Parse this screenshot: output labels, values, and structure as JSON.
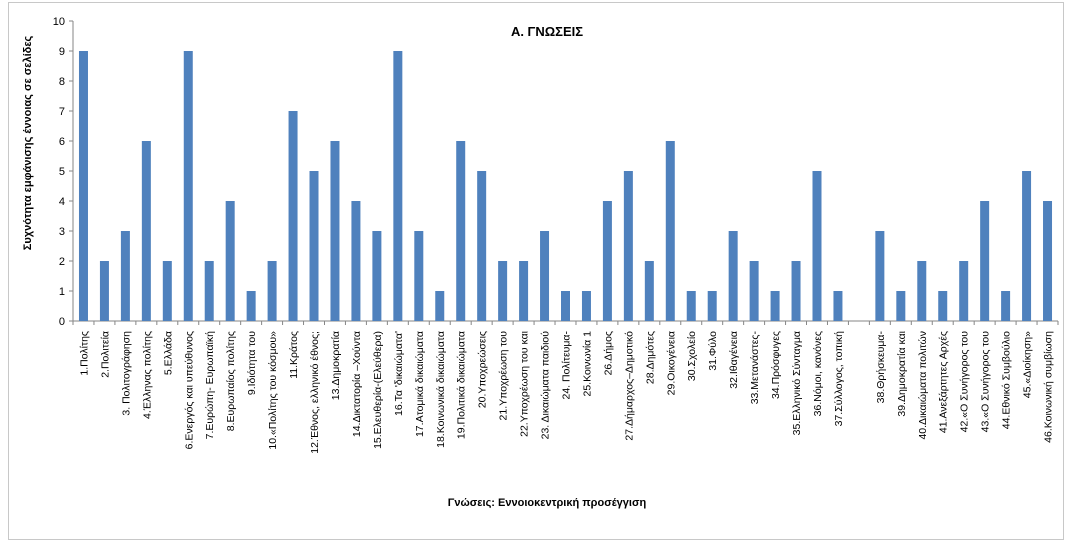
{
  "chart_data": {
    "type": "bar",
    "title": "Α. ΓΝΩΣΕΙΣ",
    "xlabel": "Γνώσεις: Εννοιοκεντρική προσέγγιση",
    "ylabel": "Συχνότητα εμφάνισης έννοιας σε σελίδες",
    "ylim": [
      0,
      10
    ],
    "yticks": [
      "0",
      "1",
      "2",
      "3",
      "4",
      "5",
      "6",
      "7",
      "8",
      "9",
      "10"
    ],
    "grid": false,
    "color": "#4f81bd",
    "categories": [
      "1.Πολίτης",
      "2.Πολιτεία",
      "3. Πολιτογράφηση",
      "4.Έλληνας πολίτης",
      "5.Ελλάδα",
      "6.Ενεργός και υπεύθυνος",
      "7.Ευρώπη- Ευρωπαϊκή",
      "8.Ευρωπαίος πολίτης",
      "9.Ιδιότητα του",
      "10.«Πολίτης του κόσμου»",
      "11.Κράτος",
      "12.Έθνος, ελληνικό έθνος;",
      "13.Δημοκρατία",
      "14.Δικτατορία –Χούντα",
      "15.Ελευθερία-(Ελεύθερα)",
      "16.Τα 'δικαιώματα'",
      "17.Ατομικά δικαιώματα",
      "18.Κοινωνικά δικαιώματα",
      "19.Πολιτικά δικαιώματα",
      "20.Υποχρεώσεις",
      "21.Υποχρέωση του",
      "22.Υποχρέωση του και",
      "23. Δικαιώματα παιδιού",
      "24. Πολίτευμα-",
      "25.Κοινωνία 1",
      "26.Δήμος",
      "27.Δήμαρχος–Δημοτικό",
      "28.Δημότες",
      "29.Οικογένεια",
      "30.Σχολείο",
      "31.Φύλο",
      "32.Ιθαγένεια",
      "33.Μετανάστες-",
      "34.Πρόσφυγες",
      "35.Ελληνικό Σύνταγμα",
      "36.Νόμοι, κανόνες",
      "37.Σύλλογος, τοπική",
      "",
      "38.Θρήσκευμα-",
      "39.Δημοκρατία και",
      "40.Δικαιώματα πολιτών",
      "41.Ανεξάρτητες Αρχές",
      "42.«Ο Συνήγορος του",
      "43.«Ο Συνήγορος του",
      "44.Εθνικό Συμβούλιο",
      "45.«Διοίκηση»",
      "46.Κοινωνική συμβίωση"
    ],
    "values": [
      9,
      2,
      3,
      6,
      2,
      9,
      2,
      4,
      1,
      2,
      7,
      5,
      6,
      4,
      3,
      9,
      3,
      1,
      6,
      5,
      2,
      2,
      3,
      1,
      1,
      4,
      5,
      2,
      6,
      1,
      1,
      3,
      2,
      1,
      2,
      5,
      1,
      0,
      3,
      1,
      2,
      1,
      2,
      4,
      1,
      5,
      4
    ]
  }
}
